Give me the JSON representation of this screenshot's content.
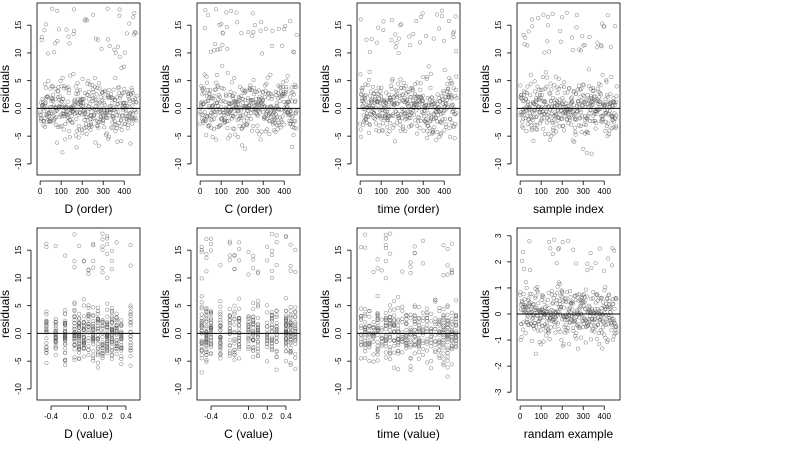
{
  "chart_data": [
    {
      "type": "scatter",
      "xlabel": "D (order)",
      "ylabel": "residuals",
      "xlim": [
        -15,
        475
      ],
      "ylim": [
        -12,
        19
      ],
      "xticks": [
        0,
        100,
        200,
        300,
        400
      ],
      "xtick_labels": [
        "0",
        "100",
        "200",
        "300",
        "400"
      ],
      "yticks": [
        -10,
        -5,
        0,
        5,
        10,
        15
      ],
      "ytick_labels": [
        "-10",
        "-5",
        "0.0",
        "5",
        "10",
        "15"
      ],
      "reference_line_y": 0,
      "n_points": 460,
      "x_kind": "index",
      "y_range_points": [
        -11,
        18
      ],
      "seed": 11
    },
    {
      "type": "scatter",
      "xlabel": "C (order)",
      "ylabel": "residuals",
      "xlim": [
        -15,
        475
      ],
      "ylim": [
        -12,
        19
      ],
      "xticks": [
        0,
        100,
        200,
        300,
        400
      ],
      "xtick_labels": [
        "0",
        "100",
        "200",
        "300",
        "400"
      ],
      "yticks": [
        -10,
        -5,
        0,
        5,
        10,
        15
      ],
      "ytick_labels": [
        "-10",
        "-5",
        "0.0",
        "5",
        "10",
        "15"
      ],
      "reference_line_y": 0,
      "n_points": 460,
      "x_kind": "index",
      "y_range_points": [
        -11,
        18
      ],
      "seed": 23
    },
    {
      "type": "scatter",
      "xlabel": "time (order)",
      "ylabel": "residuals",
      "xlim": [
        -15,
        475
      ],
      "ylim": [
        -12,
        19
      ],
      "xticks": [
        0,
        100,
        200,
        300,
        400
      ],
      "xtick_labels": [
        "0",
        "100",
        "200",
        "300",
        "400"
      ],
      "yticks": [
        -10,
        -5,
        0,
        5,
        10,
        15
      ],
      "ytick_labels": [
        "-10",
        "-5",
        "0.0",
        "5",
        "10",
        "15"
      ],
      "reference_line_y": 0,
      "n_points": 460,
      "x_kind": "index",
      "y_range_points": [
        -11,
        18
      ],
      "seed": 37
    },
    {
      "type": "scatter",
      "xlabel": "sample index",
      "ylabel": "residuals",
      "xlim": [
        -15,
        475
      ],
      "ylim": [
        -12,
        19
      ],
      "xticks": [
        0,
        100,
        200,
        300,
        400
      ],
      "xtick_labels": [
        "0",
        "100",
        "200",
        "300",
        "400"
      ],
      "yticks": [
        -10,
        -5,
        0,
        5,
        10,
        15
      ],
      "ytick_labels": [
        "-10",
        "-5",
        "0.0",
        "5",
        "10",
        "15"
      ],
      "reference_line_y": 0,
      "n_points": 460,
      "x_kind": "index",
      "y_range_points": [
        -11,
        18
      ],
      "seed": 41
    },
    {
      "type": "scatter",
      "xlabel": "D (value)",
      "ylabel": "residuals",
      "xlim": [
        -0.55,
        0.55
      ],
      "ylim": [
        -12,
        19
      ],
      "xticks": [
        -0.4,
        0.0,
        0.2,
        0.4
      ],
      "xtick_labels": [
        "-0.4",
        "0.0",
        "0.2",
        "0.4"
      ],
      "yticks": [
        -10,
        -5,
        0,
        5,
        10,
        15
      ],
      "ytick_labels": [
        "-10",
        "-5",
        "0.0",
        "5",
        "10",
        "15"
      ],
      "reference_line_y": 0,
      "n_points": 460,
      "x_kind": "discrete",
      "x_levels": [
        -0.45,
        -0.35,
        -0.25,
        -0.15,
        -0.1,
        -0.05,
        0.0,
        0.05,
        0.1,
        0.15,
        0.2,
        0.25,
        0.3,
        0.35,
        0.45
      ],
      "y_range_points": [
        -11,
        18
      ],
      "seed": 53
    },
    {
      "type": "scatter",
      "xlabel": "C (value)",
      "ylabel": "residuals",
      "xlim": [
        -0.55,
        0.55
      ],
      "ylim": [
        -12,
        19
      ],
      "xticks": [
        -0.4,
        0.0,
        0.2,
        0.4
      ],
      "xtick_labels": [
        "-0.4",
        "0.0",
        "0.2",
        "0.4"
      ],
      "yticks": [
        -10,
        -5,
        0,
        5,
        10,
        15
      ],
      "ytick_labels": [
        "-10",
        "-5",
        "0.0",
        "5",
        "10",
        "15"
      ],
      "reference_line_y": 0,
      "n_points": 460,
      "x_kind": "discrete",
      "x_levels": [
        -0.5,
        -0.45,
        -0.4,
        -0.3,
        -0.2,
        -0.15,
        -0.1,
        0.0,
        0.05,
        0.1,
        0.2,
        0.25,
        0.3,
        0.4,
        0.45,
        0.5
      ],
      "y_range_points": [
        -11,
        18
      ],
      "seed": 67
    },
    {
      "type": "scatter",
      "xlabel": "time (value)",
      "ylabel": "residuals",
      "xlim": [
        0,
        25
      ],
      "ylim": [
        -12,
        19
      ],
      "xticks": [
        5,
        10,
        15,
        20
      ],
      "xtick_labels": [
        "5",
        "10",
        "15",
        "20"
      ],
      "yticks": [
        -10,
        -5,
        0,
        5,
        10,
        15
      ],
      "ytick_labels": [
        "-10",
        "-5",
        "0.0",
        "5",
        "10",
        "15"
      ],
      "reference_line_y": 0,
      "n_points": 460,
      "x_kind": "discrete",
      "x_levels": [
        1,
        2,
        3,
        4,
        5,
        6,
        7,
        8,
        9,
        10,
        11,
        12,
        13,
        14,
        15,
        16,
        17,
        18,
        19,
        20,
        21,
        22,
        23,
        24
      ],
      "y_range_points": [
        -11,
        18
      ],
      "seed": 79
    },
    {
      "type": "scatter",
      "xlabel": "randam example",
      "ylabel": "residuals",
      "xlim": [
        -15,
        475
      ],
      "ylim": [
        -3.3,
        3.3
      ],
      "xticks": [
        0,
        100,
        200,
        300,
        400
      ],
      "xtick_labels": [
        "0",
        "100",
        "200",
        "300",
        "400"
      ],
      "yticks": [
        -3,
        -2,
        -1,
        0,
        1,
        2,
        3
      ],
      "ytick_labels": [
        "-3",
        "-2",
        "-1",
        "0",
        "1",
        "2",
        "3"
      ],
      "reference_line_y": 0,
      "n_points": 460,
      "x_kind": "index",
      "y_range_points": [
        -3.1,
        2.9
      ],
      "seed": 97
    }
  ]
}
